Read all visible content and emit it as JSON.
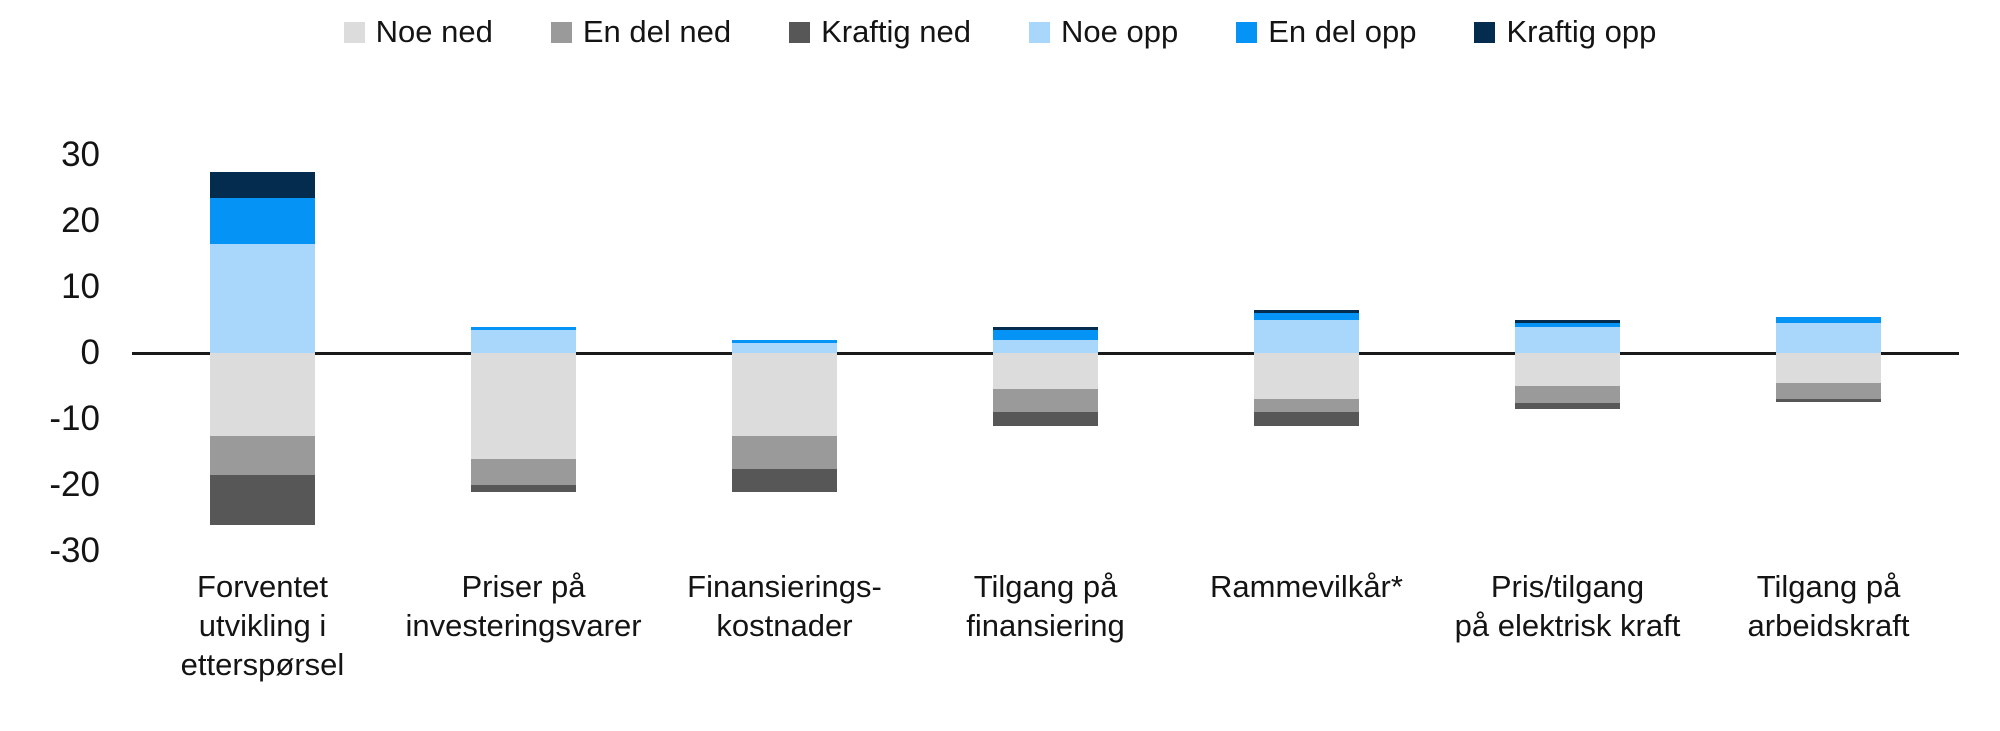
{
  "chart_data": {
    "type": "bar",
    "stacked": true,
    "title": "",
    "xlabel": "",
    "ylabel": "",
    "grid": false,
    "legend_position": "top",
    "ylim": [
      -30,
      35
    ],
    "yticks": [
      30,
      20,
      10,
      0,
      -10,
      -20,
      -30
    ],
    "categories": [
      "Forventet\nutvikling i\netterspørsel",
      "Priser på\ninvesteringsvarer",
      "Finansierings-\nkostnader",
      "Tilgang på\nfinansiering",
      "Rammevilkår*",
      "Pris/tilgang\npå elektrisk kraft",
      "Tilgang på\narbeidskraft"
    ],
    "series": [
      {
        "name": "Noe ned",
        "color": "#DCDCDC",
        "values": [
          -12.5,
          -16.0,
          -12.5,
          -5.5,
          -7.0,
          -5.0,
          -4.5
        ]
      },
      {
        "name": "En del ned",
        "color": "#9A9A9A",
        "values": [
          -6.0,
          -4.0,
          -5.0,
          -3.5,
          -2.0,
          -2.5,
          -2.5
        ]
      },
      {
        "name": "Kraftig ned",
        "color": "#575757",
        "values": [
          -7.5,
          -1.0,
          -3.5,
          -2.0,
          -2.0,
          -1.0,
          -0.5
        ]
      },
      {
        "name": "Noe opp",
        "color": "#A8D7FB",
        "values": [
          16.5,
          3.5,
          1.5,
          2.0,
          5.0,
          4.0,
          4.5
        ]
      },
      {
        "name": "En del opp",
        "color": "#0593F5",
        "values": [
          7.0,
          0.5,
          0.5,
          1.5,
          1.0,
          0.5,
          1.0
        ]
      },
      {
        "name": "Kraftig opp",
        "color": "#032C4E",
        "values": [
          4.0,
          0.0,
          0.0,
          0.5,
          0.5,
          0.5,
          0.0
        ]
      }
    ],
    "axis_color": "#1a1a1a",
    "text_color": "#141414"
  }
}
